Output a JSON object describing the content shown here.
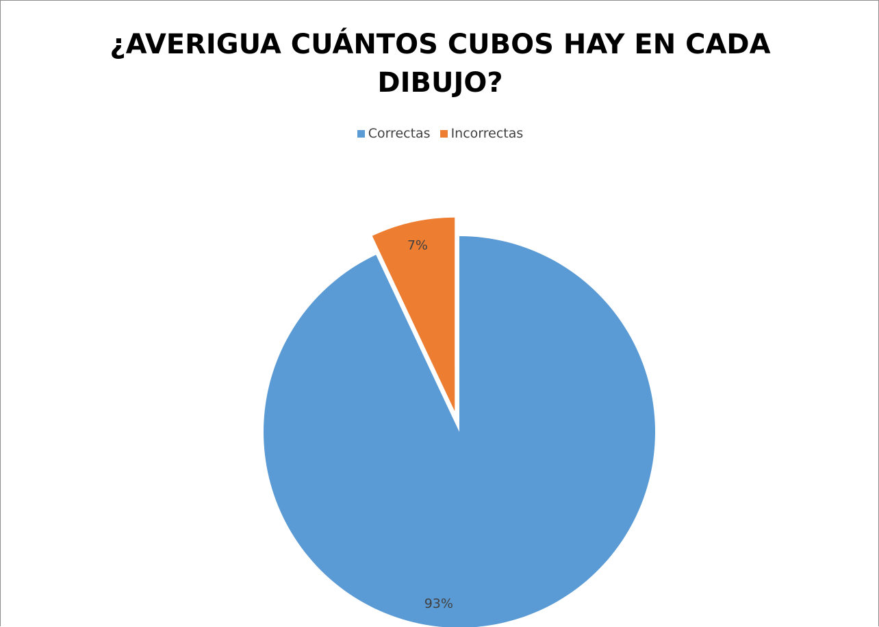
{
  "chart_data": {
    "type": "pie",
    "title_lines": [
      "¿AVERIGUA CUÁNTOS CUBOS HAY EN CADA",
      "DIBUJO?"
    ],
    "legend_position": "top",
    "slices": [
      {
        "label": "Correctas",
        "value": 93,
        "value_label": "93%",
        "color": "#5b9bd5",
        "exploded": false
      },
      {
        "label": "Incorrectas",
        "value": 7,
        "value_label": "7%",
        "color": "#ed7d31",
        "exploded": true
      }
    ]
  }
}
